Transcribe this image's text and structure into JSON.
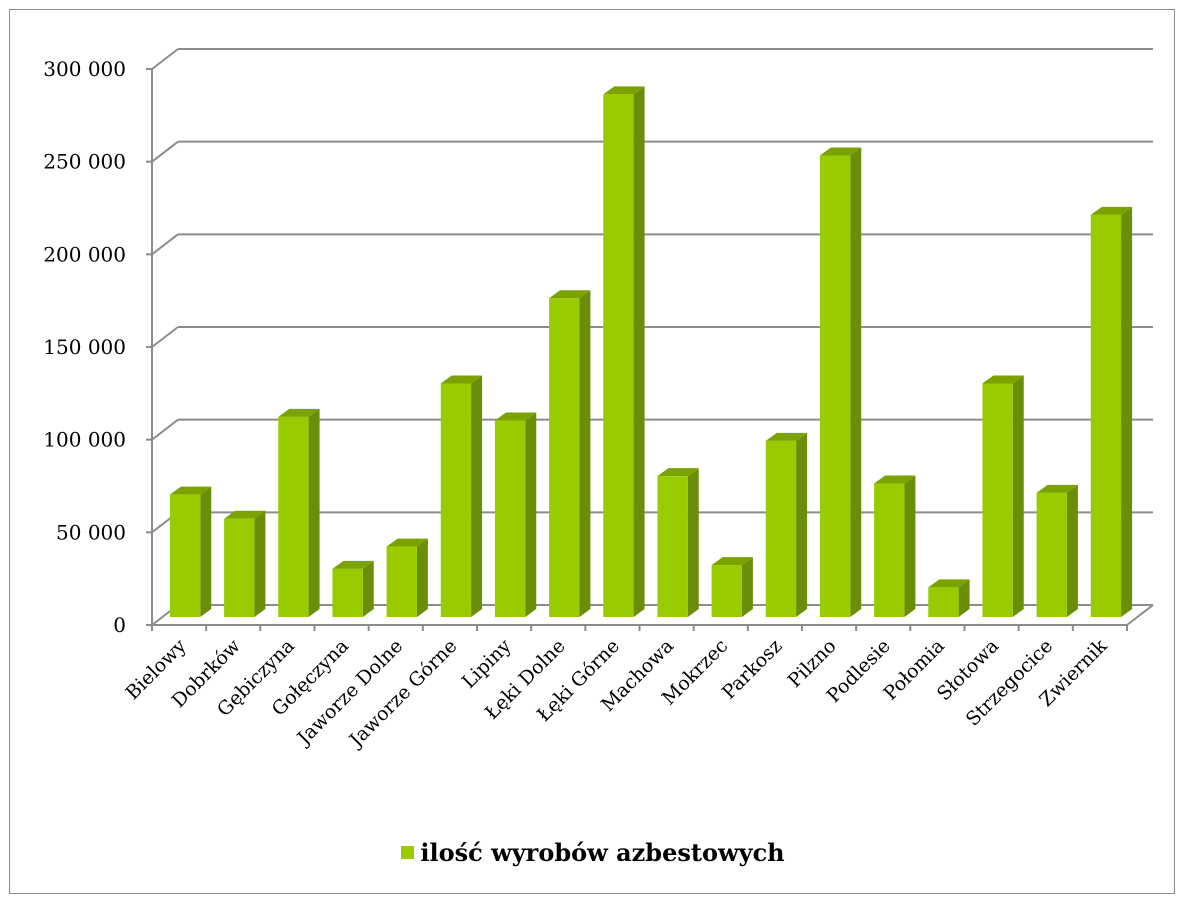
{
  "chart_data": {
    "type": "bar",
    "three_d": true,
    "title": "",
    "xlabel": "",
    "ylabel": "",
    "categories": [
      "Bielowy",
      "Dobrków",
      "Gębiczyna",
      "Gołęczyna",
      "Jaworze Dolne",
      "Jaworze Górne",
      "Lipiny",
      "Łęki Dolne",
      "Łęki Górne",
      "Machowa",
      "Mokrzec",
      "Parkosz",
      "Pilzno",
      "Podlesie",
      "Połomia",
      "Słotowa",
      "Strzegocice",
      "Zwiernik"
    ],
    "series": [
      {
        "name": "ilość wyrobów azbestowych",
        "values": [
          66000,
          53000,
          108000,
          26000,
          38000,
          126000,
          106000,
          172000,
          282000,
          76000,
          28000,
          95000,
          249000,
          72000,
          16000,
          126000,
          67000,
          217000
        ]
      }
    ],
    "ylim": [
      0,
      300000
    ],
    "yticks": [
      0,
      50000,
      100000,
      150000,
      200000,
      250000,
      300000
    ],
    "ytick_labels": [
      "0",
      "50 000",
      "100 000",
      "150 000",
      "200 000",
      "250 000",
      "300 000"
    ],
    "grid": true,
    "legend_position": "bottom",
    "colors": {
      "bar_front": "#99cc00",
      "bar_side": "#6b8e0a",
      "bar_top": "#7aa300",
      "grid": "#8c8c8c"
    }
  }
}
